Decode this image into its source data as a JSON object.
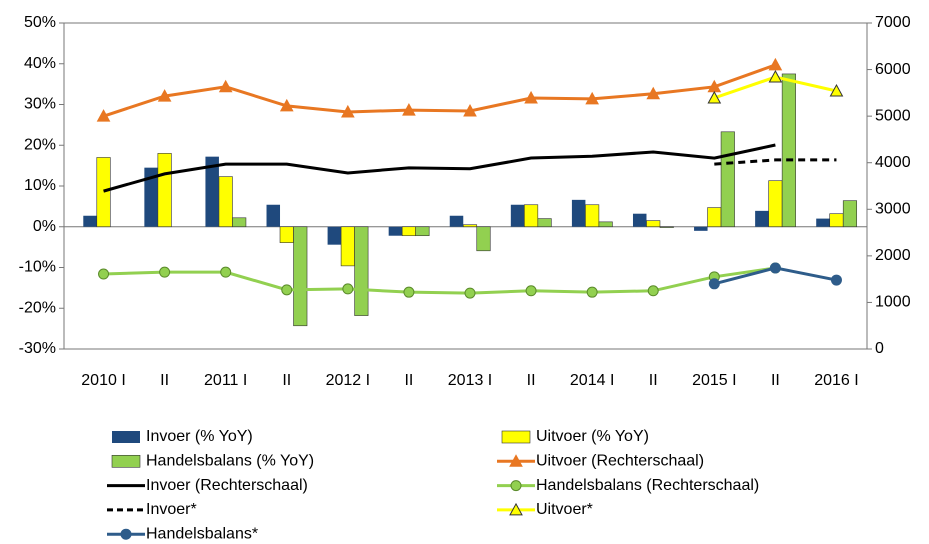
{
  "chart_data": {
    "type": "combo",
    "categories": [
      "2010 I",
      "II",
      "2011 I",
      "II",
      "2012 I",
      "II",
      "2013 I",
      "II",
      "2014 I",
      "II",
      "2015 I",
      "II",
      "2016 I"
    ],
    "ylim": [
      -30,
      50
    ],
    "yticks": [
      {
        "value": -30,
        "label": "-30%"
      },
      {
        "value": -20,
        "label": "-20%"
      },
      {
        "value": -10,
        "label": "-10%"
      },
      {
        "value": 0,
        "label": "0%"
      },
      {
        "value": 10,
        "label": "10%"
      },
      {
        "value": 20,
        "label": "20%"
      },
      {
        "value": 30,
        "label": "30%"
      },
      {
        "value": 40,
        "label": "40%"
      },
      {
        "value": 50,
        "label": "50%"
      }
    ],
    "y2lim": [
      0,
      7000
    ],
    "y2ticks": [
      0,
      1000,
      2000,
      3000,
      4000,
      5000,
      6000,
      7000
    ],
    "grid": false,
    "series": [
      {
        "name": "Invoer (% YoY)",
        "type": "bar",
        "color": "#1F497D",
        "values": [
          2.7,
          14.5,
          17.2,
          5.4,
          -4.4,
          -2.2,
          2.7,
          5.4,
          6.6,
          3.2,
          -1.0,
          3.9,
          2.0
        ]
      },
      {
        "name": "Uitvoer (% YoY)",
        "type": "bar",
        "color": "#FFFF00",
        "values": [
          17.0,
          18.0,
          12.3,
          -3.9,
          -9.6,
          -2.2,
          0.5,
          5.4,
          5.4,
          1.5,
          4.7,
          11.3,
          3.2
        ]
      },
      {
        "name": "Handelsbalans (% YoY)",
        "type": "bar",
        "color": "#92D050",
        "values": [
          0,
          0,
          2.2,
          -24.3,
          -21.8,
          -2.2,
          -5.9,
          2.0,
          1.2,
          -0.2,
          23.3,
          37.5,
          6.4
        ]
      },
      {
        "name": "Uitvoer (Rechterschaal)",
        "type": "line",
        "axis": "y2",
        "marker": "triangle",
        "color": "#E87722",
        "values": [
          5000,
          5430,
          5630,
          5220,
          5090,
          5130,
          5110,
          5390,
          5370,
          5480,
          5630,
          6100,
          null
        ]
      },
      {
        "name": "Invoer (Rechterschaal)",
        "type": "line",
        "axis": "y2",
        "marker": "none",
        "color": "#000000",
        "values": [
          3390,
          3760,
          3970,
          3970,
          3780,
          3890,
          3870,
          4100,
          4140,
          4230,
          4100,
          4380,
          null
        ]
      },
      {
        "name": "Handelsbalans (Rechterschaal)",
        "type": "line",
        "axis": "y2",
        "marker": "circle",
        "color": "#92D050",
        "values": [
          1610,
          1650,
          1650,
          1270,
          1290,
          1220,
          1200,
          1250,
          1220,
          1250,
          1550,
          1740,
          null
        ]
      },
      {
        "name": "Invoer*",
        "type": "line",
        "axis": "y2",
        "marker": "none",
        "dash": true,
        "color": "#000000",
        "values": [
          null,
          null,
          null,
          null,
          null,
          null,
          null,
          null,
          null,
          null,
          3970,
          4060,
          4060
        ]
      },
      {
        "name": "Uitvoer*",
        "type": "line",
        "axis": "y2",
        "marker": "triangle",
        "color": "#FFFF00",
        "values": [
          null,
          null,
          null,
          null,
          null,
          null,
          null,
          null,
          null,
          null,
          5390,
          5840,
          5540
        ]
      },
      {
        "name": "Handelsbalans*",
        "type": "line",
        "axis": "y2",
        "marker": "circle",
        "color": "#2E5C8A",
        "values": [
          null,
          null,
          null,
          null,
          null,
          null,
          null,
          null,
          null,
          null,
          1400,
          1740,
          1480
        ]
      }
    ]
  }
}
